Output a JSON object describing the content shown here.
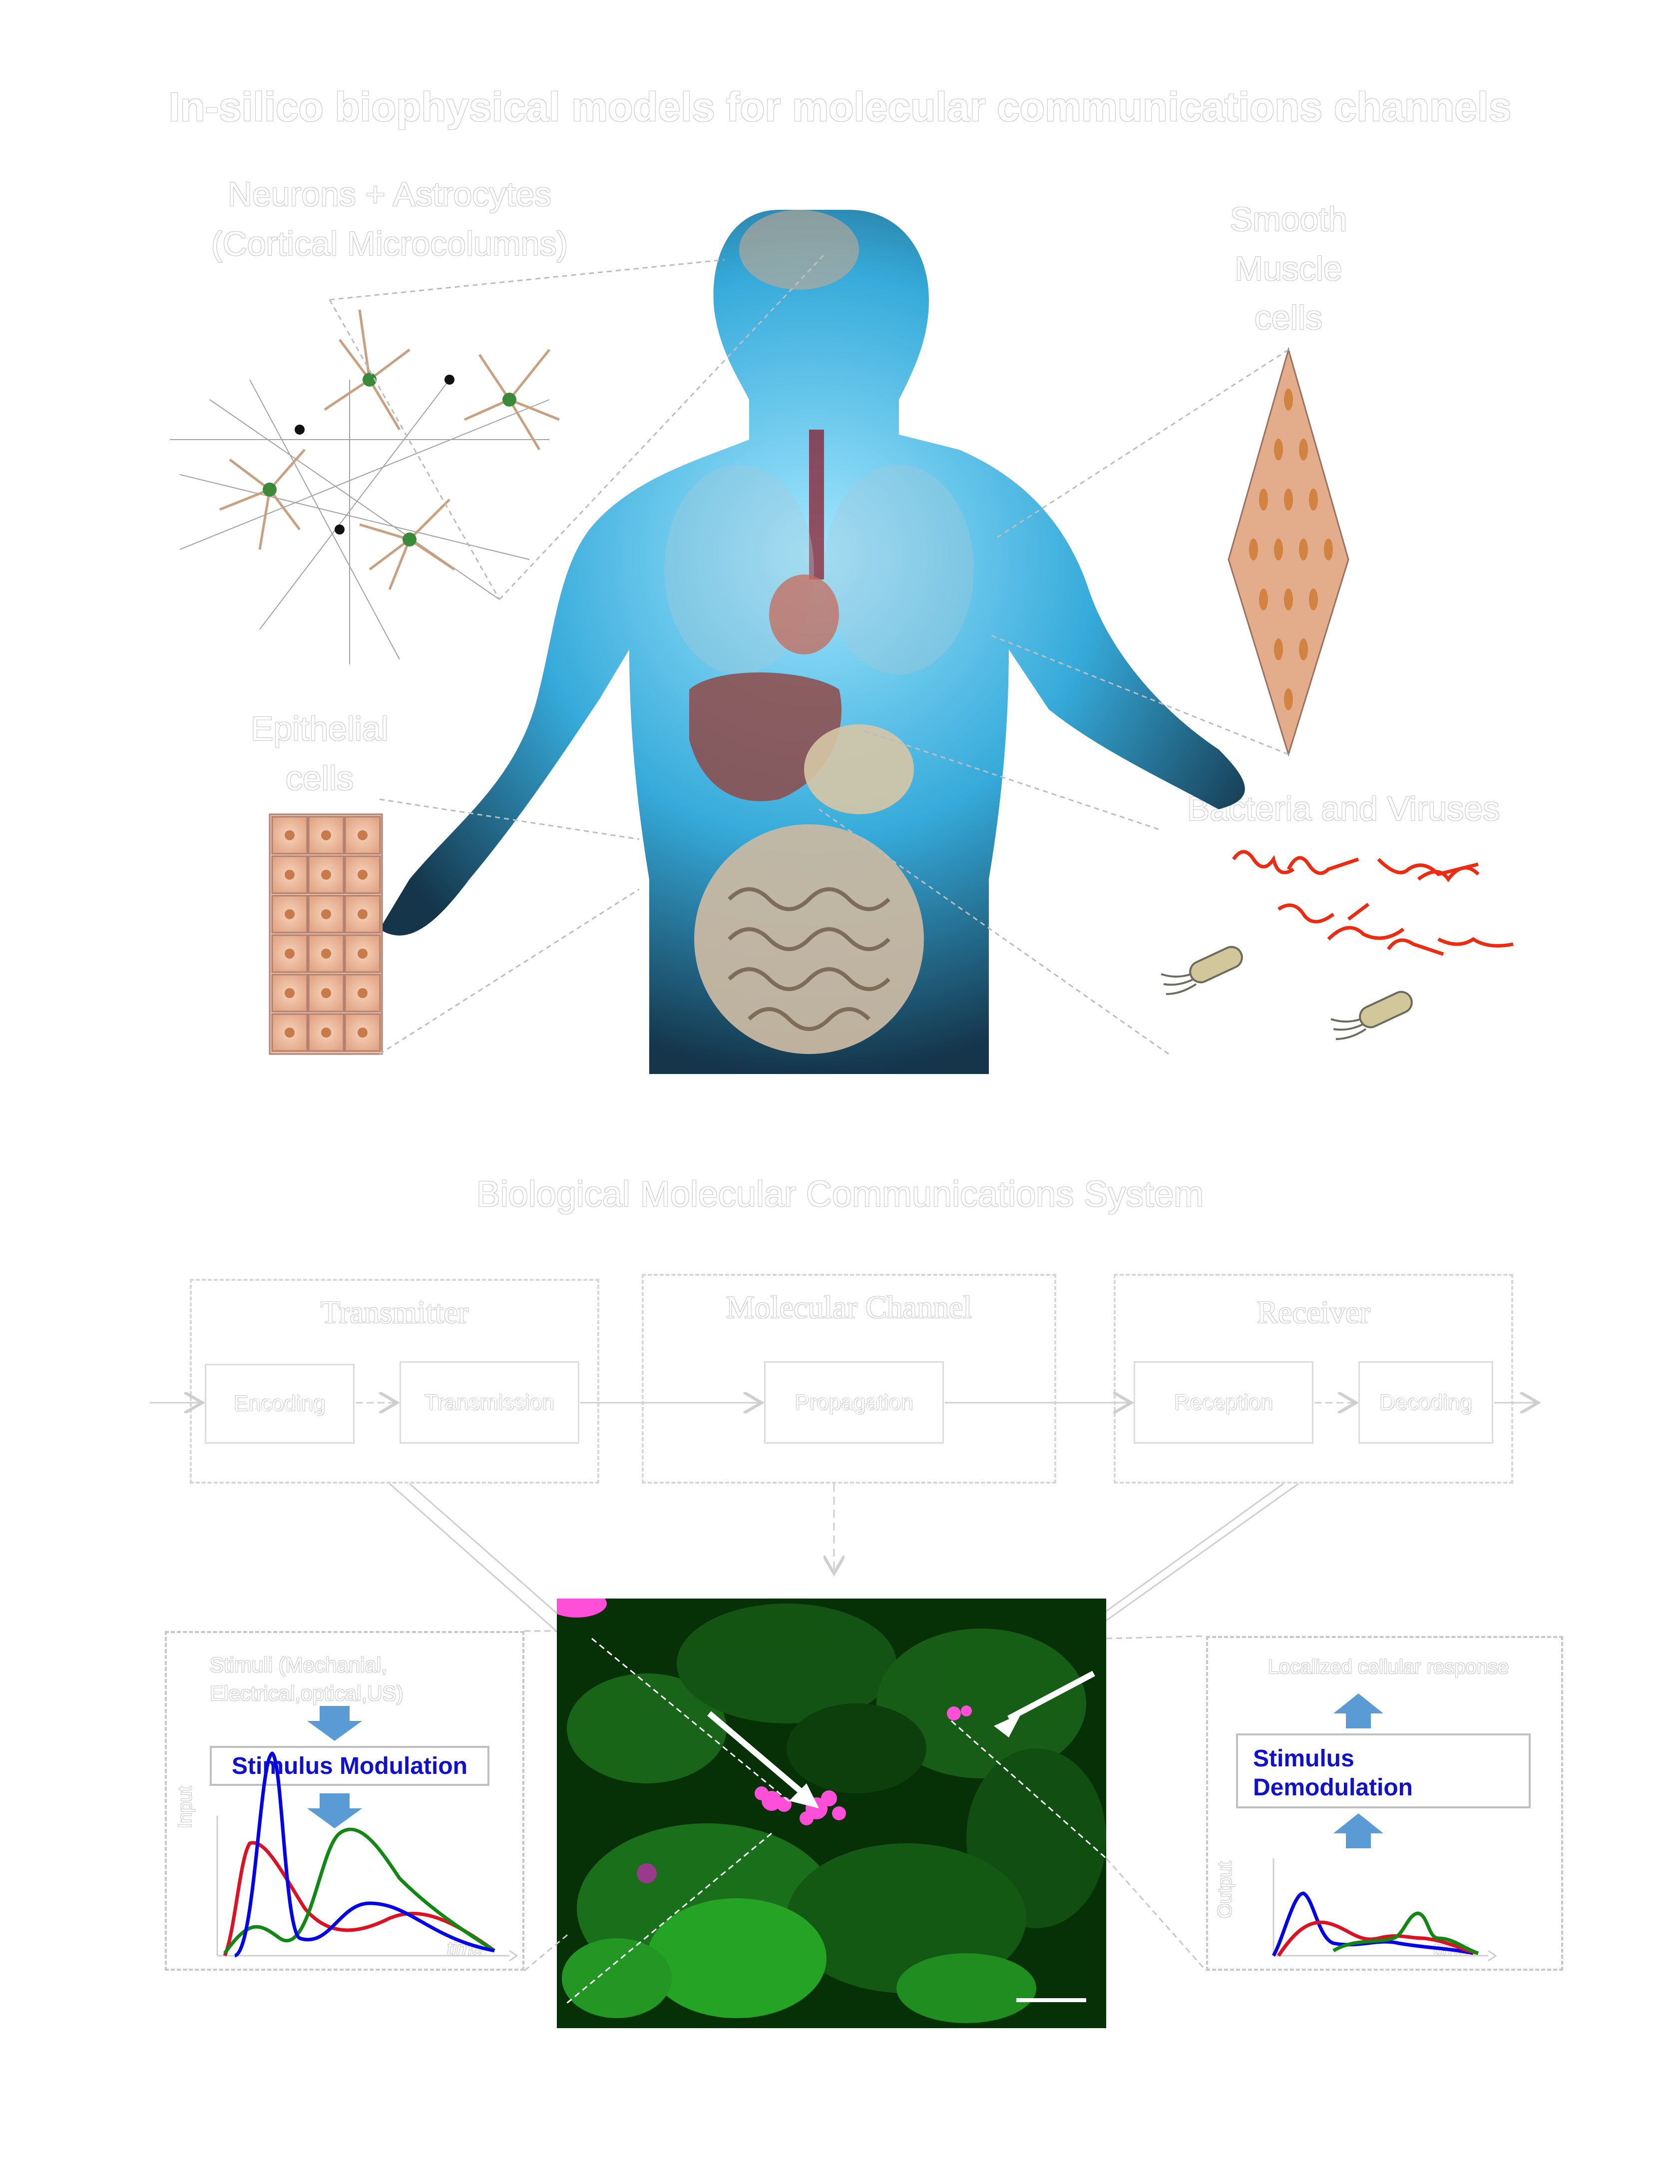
{
  "title": "In-silico biophysical models for molecular communications channels",
  "labels": {
    "neurons": [
      "Neurons + Astrocytes",
      "(Cortical Microcolumns)"
    ],
    "smooth_muscle": [
      "Smooth",
      "Muscle",
      "cells"
    ],
    "epithelial": [
      "Epithelial",
      "cells"
    ],
    "bacteria": "Bacteria and Viruses"
  },
  "system": {
    "title": "Biological Molecular Communications System",
    "transmitter": {
      "title": "Transmitter",
      "blocks": [
        "Encoding",
        "Transmission"
      ]
    },
    "channel": {
      "title": "Molecular Channel",
      "blocks": [
        "Propagation"
      ]
    },
    "receiver": {
      "title": "Receiver",
      "blocks": [
        "Reception",
        "Decoding"
      ]
    }
  },
  "left_panel": {
    "stimuli": [
      "Stimuli (Mechanial,",
      "Electrical,optical,US)"
    ],
    "modulation": "Stimulus Modulation",
    "y_axis": "Input",
    "x_axis": "time"
  },
  "right_panel": {
    "response": "Localized cellular response",
    "demodulation": [
      "Stimulus",
      "Demodulation"
    ],
    "y_axis": "Output",
    "x_axis": "time"
  },
  "colors": {
    "body_glow": "#3fc0ec",
    "series_blue": "#0000ee",
    "series_red": "#dd1122",
    "series_green": "#118811",
    "arrow_blue": "#5b9bd5",
    "micro_bg": "#063006"
  }
}
